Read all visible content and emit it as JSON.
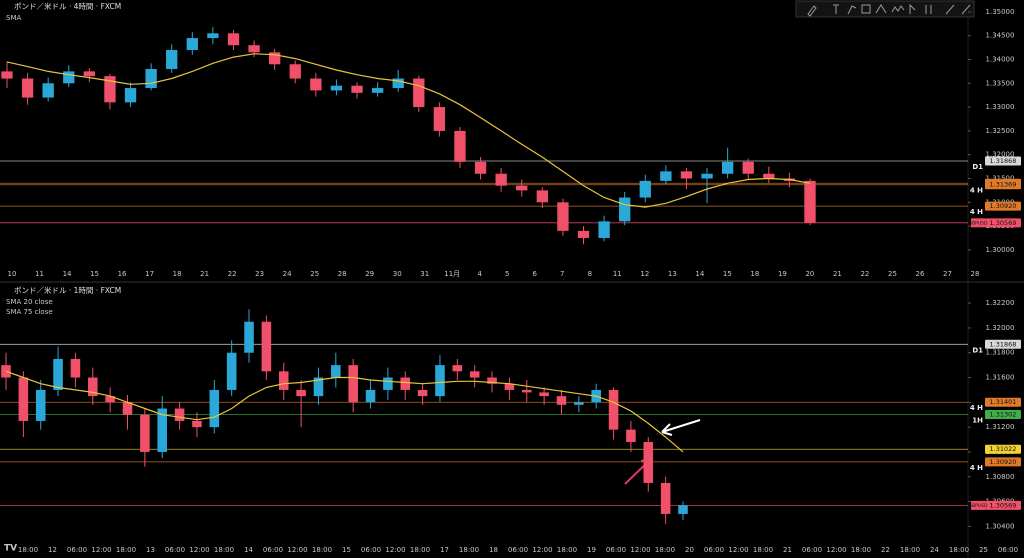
{
  "chart_data": [
    {
      "type": "candlestick",
      "title": "ポンド／米ドル · 4時間 · FXCM",
      "indicators": [
        "SMA"
      ],
      "up_color": "#2aa8d8",
      "down_color": "#f0506a",
      "x_labels": [
        "10",
        "11",
        "14",
        "15",
        "16",
        "17",
        "18",
        "21",
        "22",
        "23",
        "24",
        "25",
        "28",
        "29",
        "30",
        "31",
        "11月",
        "4",
        "5",
        "6",
        "7",
        "8",
        "11",
        "12",
        "13",
        "14",
        "15",
        "18",
        "19",
        "20",
        "21",
        "22",
        "25",
        "26",
        "27",
        "28"
      ],
      "open": [
        1.3375,
        1.336,
        1.332,
        1.335,
        1.3375,
        1.3365,
        1.331,
        1.334,
        1.338,
        1.342,
        1.3445,
        1.3455,
        1.343,
        1.3415,
        1.339,
        1.336,
        1.3335,
        1.3345,
        1.333,
        1.334,
        1.336,
        1.33,
        1.325,
        1.3185,
        1.316,
        1.3135,
        1.3125,
        1.31,
        1.304,
        1.3025,
        1.306,
        1.311,
        1.3145,
        1.3165,
        1.315,
        1.316,
        1.3185,
        1.316,
        1.315,
        1.3145
      ],
      "high": [
        1.3395,
        1.3372,
        1.3362,
        1.3388,
        1.3382,
        1.337,
        1.3352,
        1.3392,
        1.3432,
        1.3458,
        1.3468,
        1.3462,
        1.344,
        1.3422,
        1.3398,
        1.3372,
        1.3358,
        1.3352,
        1.3352,
        1.3378,
        1.3366,
        1.331,
        1.3258,
        1.3195,
        1.3172,
        1.3148,
        1.3132,
        1.3108,
        1.305,
        1.3072,
        1.3122,
        1.3158,
        1.3178,
        1.3172,
        1.3172,
        1.3215,
        1.3192,
        1.3175,
        1.3162,
        1.315
      ],
      "low": [
        1.334,
        1.3305,
        1.3312,
        1.3342,
        1.3352,
        1.3295,
        1.33,
        1.3335,
        1.3372,
        1.341,
        1.3432,
        1.342,
        1.3405,
        1.3378,
        1.335,
        1.3322,
        1.3325,
        1.3318,
        1.3322,
        1.3332,
        1.329,
        1.3238,
        1.3172,
        1.3148,
        1.3122,
        1.3112,
        1.3088,
        1.303,
        1.3012,
        1.3018,
        1.3052,
        1.31,
        1.3138,
        1.3128,
        1.3098,
        1.315,
        1.3148,
        1.314,
        1.3132,
        1.3052
      ],
      "close": [
        1.336,
        1.332,
        1.335,
        1.3375,
        1.3365,
        1.331,
        1.334,
        1.338,
        1.342,
        1.3445,
        1.3455,
        1.343,
        1.3415,
        1.339,
        1.336,
        1.3335,
        1.3345,
        1.333,
        1.334,
        1.336,
        1.33,
        1.325,
        1.3185,
        1.316,
        1.3135,
        1.3125,
        1.31,
        1.304,
        1.3025,
        1.306,
        1.311,
        1.3145,
        1.3165,
        1.315,
        1.316,
        1.3185,
        1.316,
        1.315,
        1.3145,
        1.3057
      ],
      "sma": {
        "color": "#e8c53a",
        "values": [
          1.3395,
          1.3385,
          1.3375,
          1.3368,
          1.3362,
          1.3355,
          1.3348,
          1.335,
          1.336,
          1.3375,
          1.3392,
          1.3405,
          1.3412,
          1.341,
          1.3402,
          1.339,
          1.3378,
          1.3368,
          1.336,
          1.3355,
          1.3345,
          1.3328,
          1.3305,
          1.3278,
          1.325,
          1.3222,
          1.3195,
          1.3165,
          1.3135,
          1.311,
          1.3095,
          1.309,
          1.3098,
          1.3112,
          1.3128,
          1.314,
          1.3148,
          1.315,
          1.3148,
          1.314
        ]
      },
      "ylim": [
        1.2962,
        1.3525
      ],
      "yticks": [
        {
          "value": 1.35,
          "label": "1.35000"
        },
        {
          "value": 1.345,
          "label": "1.34500"
        },
        {
          "value": 1.34,
          "label": "1.34000"
        },
        {
          "value": 1.335,
          "label": "1.33500"
        },
        {
          "value": 1.33,
          "label": "1.33000"
        },
        {
          "value": 1.325,
          "label": "1.32500"
        },
        {
          "value": 1.32,
          "label": "1.32000"
        },
        {
          "value": 1.315,
          "label": "1.31500"
        },
        {
          "value": 1.31,
          "label": "1.31000"
        },
        {
          "value": 1.305,
          "label": "1.30500"
        },
        {
          "value": 1.3,
          "label": "1.30000"
        }
      ],
      "levels": [
        {
          "value": 1.31868,
          "label": "1.31868",
          "color": "#d8d8d8",
          "tag": "D1"
        },
        {
          "value": 1.31401,
          "label": "1.31401",
          "color": "#e07a2a"
        },
        {
          "value": 1.31369,
          "label": "1.31369",
          "color": "#e07a2a",
          "tag": "4 H"
        },
        {
          "value": 1.3092,
          "label": "1.30920",
          "color": "#e07a2a",
          "tag": "4 H"
        },
        {
          "value": 1.30569,
          "label": "1.30569",
          "color": "#f0506a",
          "tag": "GBPUSD"
        }
      ]
    },
    {
      "type": "candlestick",
      "title": "ポンド／米ドル · 1時間 · FXCM",
      "indicators": [
        "SMA 20 close",
        "SMA 75 close"
      ],
      "up_color": "#2aa8d8",
      "down_color": "#f0506a",
      "x_labels": [
        "18:00",
        "12",
        "06:00",
        "12:00",
        "18:00",
        "13",
        "06:00",
        "12:00",
        "18:00",
        "14",
        "06:00",
        "12:00",
        "18:00",
        "15",
        "06:00",
        "12:00",
        "18:00",
        "17",
        "18:00",
        "18",
        "06:00",
        "12:00",
        "18:00",
        "19",
        "06:00",
        "12:00",
        "18:00",
        "20",
        "06:00",
        "12:00",
        "18:00",
        "21",
        "06:00",
        "12:00",
        "18:00",
        "22",
        "18:00",
        "24",
        "18:00",
        "25",
        "06:00"
      ],
      "open": [
        1.317,
        1.316,
        1.3125,
        1.315,
        1.3175,
        1.316,
        1.3145,
        1.314,
        1.313,
        1.31,
        1.3135,
        1.3125,
        1.312,
        1.315,
        1.318,
        1.3205,
        1.3165,
        1.315,
        1.3145,
        1.316,
        1.317,
        1.314,
        1.315,
        1.316,
        1.315,
        1.3145,
        1.317,
        1.3165,
        1.316,
        1.3155,
        1.315,
        1.3148,
        1.3145,
        1.3138,
        1.314,
        1.315,
        1.3118,
        1.3108,
        1.3075,
        1.305
      ],
      "high": [
        1.318,
        1.3165,
        1.3158,
        1.3185,
        1.318,
        1.3168,
        1.3152,
        1.3146,
        1.3135,
        1.3145,
        1.314,
        1.3132,
        1.3158,
        1.319,
        1.3215,
        1.321,
        1.3172,
        1.3158,
        1.3168,
        1.318,
        1.3175,
        1.3158,
        1.3168,
        1.3165,
        1.3155,
        1.3178,
        1.3175,
        1.317,
        1.3165,
        1.316,
        1.3158,
        1.3152,
        1.315,
        1.3145,
        1.3155,
        1.3152,
        1.3125,
        1.3112,
        1.308,
        1.306
      ],
      "low": [
        1.315,
        1.3112,
        1.3118,
        1.3145,
        1.3152,
        1.3138,
        1.3132,
        1.3118,
        1.3088,
        1.3095,
        1.3118,
        1.3112,
        1.3115,
        1.3145,
        1.3172,
        1.3158,
        1.3142,
        1.312,
        1.3138,
        1.3152,
        1.3132,
        1.3135,
        1.3142,
        1.3142,
        1.3138,
        1.314,
        1.3158,
        1.3152,
        1.3148,
        1.3142,
        1.314,
        1.3138,
        1.313,
        1.3132,
        1.3135,
        1.311,
        1.31,
        1.3068,
        1.3042,
        1.3045
      ],
      "close": [
        1.316,
        1.3125,
        1.315,
        1.3175,
        1.316,
        1.3145,
        1.314,
        1.313,
        1.31,
        1.3135,
        1.3125,
        1.312,
        1.315,
        1.318,
        1.3205,
        1.3165,
        1.315,
        1.3145,
        1.316,
        1.317,
        1.314,
        1.315,
        1.316,
        1.315,
        1.3145,
        1.317,
        1.3165,
        1.316,
        1.3155,
        1.315,
        1.3148,
        1.3145,
        1.3138,
        1.314,
        1.315,
        1.3118,
        1.3108,
        1.3075,
        1.305,
        1.3057
      ],
      "sma": {
        "color": "#e8c53a",
        "values": [
          1.3165,
          1.316,
          1.3155,
          1.3152,
          1.315,
          1.3148,
          1.3145,
          1.314,
          1.3135,
          1.313,
          1.3128,
          1.3126,
          1.3128,
          1.3135,
          1.3145,
          1.3152,
          1.3155,
          1.3156,
          1.3158,
          1.316,
          1.316,
          1.3158,
          1.3157,
          1.3156,
          1.3155,
          1.3156,
          1.3157,
          1.3157,
          1.3156,
          1.3155,
          1.3153,
          1.3151,
          1.3149,
          1.3147,
          1.3145,
          1.314,
          1.3133,
          1.3123,
          1.3112,
          1.31
        ]
      },
      "ylim": [
        1.3029,
        1.3233
      ],
      "yticks": [
        {
          "value": 1.322,
          "label": "1.32200"
        },
        {
          "value": 1.32,
          "label": "1.32000"
        },
        {
          "value": 1.318,
          "label": "1.31800"
        },
        {
          "value": 1.316,
          "label": "1.31600"
        },
        {
          "value": 1.314,
          "label": "1.31400"
        },
        {
          "value": 1.312,
          "label": "1.31200"
        },
        {
          "value": 1.31,
          "label": "1.31000"
        },
        {
          "value": 1.308,
          "label": "1.30800"
        },
        {
          "value": 1.306,
          "label": "1.30600"
        },
        {
          "value": 1.304,
          "label": "1.30400"
        }
      ],
      "levels": [
        {
          "value": 1.31868,
          "label": "1.31868",
          "color": "#d8d8d8",
          "tag": "D1"
        },
        {
          "value": 1.31401,
          "label": "1.31401",
          "color": "#e07a2a",
          "tag": "4 H"
        },
        {
          "value": 1.31302,
          "label": "1.31302",
          "color": "#3fae4a",
          "tag": "1H"
        },
        {
          "value": 1.31022,
          "label": "1.31022",
          "color": "#f2d230"
        },
        {
          "value": 1.3092,
          "label": "1.30920",
          "color": "#e07a2a",
          "tag": "4 H"
        },
        {
          "value": 1.30569,
          "label": "1.30569",
          "color": "#f0506a",
          "tag": "GBPUSD"
        }
      ]
    }
  ]
}
